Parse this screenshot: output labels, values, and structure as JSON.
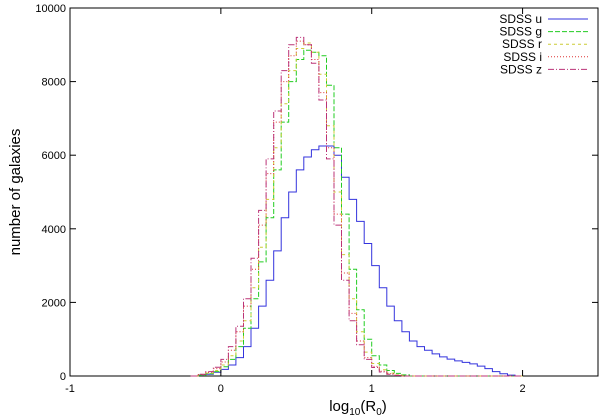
{
  "chart_data": {
    "type": "line",
    "xlabel": "log10(R0)",
    "xlabel_parts": {
      "base": "log",
      "base_sub": "10",
      "open": "(R",
      "arg_sub": "0",
      "close": ")"
    },
    "ylabel": "number of galaxies",
    "xlim": [
      -1,
      2.5
    ],
    "ylim": [
      0,
      10000
    ],
    "x_ticks": [
      -1,
      0,
      1,
      2
    ],
    "y_ticks": [
      0,
      2000,
      4000,
      6000,
      8000,
      10000
    ],
    "x_tick_labels": [
      "-1",
      "0",
      "1",
      "2"
    ],
    "y_tick_labels": [
      "0",
      "2000",
      "4000",
      "6000",
      "8000",
      "10000"
    ],
    "grid": false,
    "legend_position": "top-right",
    "bin_edges": [
      -0.2,
      -0.15,
      -0.1,
      -0.05,
      0.0,
      0.05,
      0.1,
      0.15,
      0.2,
      0.25,
      0.3,
      0.35,
      0.4,
      0.45,
      0.5,
      0.55,
      0.6,
      0.65,
      0.7,
      0.75,
      0.8,
      0.85,
      0.9,
      0.95,
      1.0,
      1.05,
      1.1,
      1.15,
      1.2,
      1.25,
      1.3,
      1.35,
      1.4,
      1.45,
      1.5,
      1.55,
      1.6,
      1.65,
      1.7,
      1.75,
      1.8,
      1.85,
      1.9,
      1.95,
      2.0
    ],
    "series": [
      {
        "name": "SDSS u",
        "color": "#3333dd",
        "dash": "",
        "values": [
          0,
          20,
          50,
          100,
          180,
          300,
          500,
          800,
          1300,
          1900,
          2600,
          3400,
          4300,
          5000,
          5600,
          5950,
          6150,
          6250,
          6250,
          6000,
          5400,
          4800,
          4200,
          3600,
          3000,
          2400,
          1900,
          1500,
          1200,
          950,
          800,
          700,
          600,
          520,
          460,
          410,
          370,
          330,
          270,
          200,
          120,
          60,
          25,
          0
        ]
      },
      {
        "name": "SDSS g",
        "color": "#22cc22",
        "dash": "5,2",
        "values": [
          0,
          20,
          60,
          120,
          250,
          450,
          800,
          1300,
          2100,
          3100,
          4300,
          5600,
          6900,
          8000,
          8600,
          8850,
          8800,
          8700,
          7900,
          6200,
          4400,
          2900,
          1800,
          1000,
          550,
          300,
          150,
          70,
          30,
          0,
          0,
          0,
          0,
          0,
          0,
          0,
          0,
          0,
          0,
          0,
          0,
          0,
          0,
          0
        ]
      },
      {
        "name": "SDSS r",
        "color": "#cccc33",
        "dash": "3,3",
        "values": [
          0,
          30,
          80,
          150,
          300,
          550,
          950,
          1500,
          2400,
          3500,
          4800,
          6200,
          7400,
          8300,
          8900,
          9050,
          8800,
          8200,
          6800,
          5000,
          3300,
          2100,
          1200,
          650,
          340,
          170,
          80,
          30,
          0,
          0,
          0,
          0,
          0,
          0,
          0,
          0,
          0,
          0,
          0,
          0,
          0,
          0,
          0,
          0
        ]
      },
      {
        "name": "SDSS i",
        "color": "#dd3333",
        "dash": "1,2",
        "values": [
          0,
          40,
          100,
          200,
          380,
          700,
          1200,
          1900,
          2900,
          4100,
          5500,
          6900,
          8000,
          8700,
          9100,
          9000,
          8600,
          7700,
          6200,
          4400,
          2800,
          1700,
          950,
          500,
          260,
          130,
          60,
          20,
          0,
          0,
          0,
          0,
          0,
          0,
          0,
          0,
          0,
          0,
          0,
          0,
          0,
          0,
          0,
          0
        ]
      },
      {
        "name": "SDSS z",
        "color": "#bb3377",
        "dash": "6,2,1,2",
        "values": [
          0,
          50,
          120,
          240,
          450,
          800,
          1350,
          2100,
          3200,
          4500,
          5900,
          7200,
          8300,
          9000,
          9200,
          9000,
          8500,
          7500,
          5900,
          4100,
          2600,
          1500,
          850,
          450,
          230,
          110,
          50,
          15,
          0,
          0,
          0,
          0,
          0,
          0,
          0,
          0,
          0,
          0,
          0,
          0,
          0,
          0,
          0,
          0
        ]
      }
    ]
  }
}
